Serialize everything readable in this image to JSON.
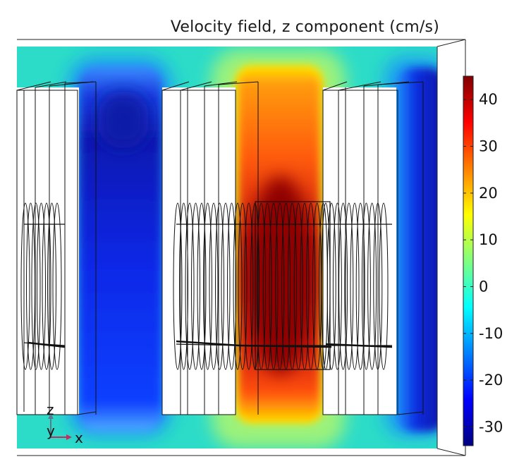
{
  "title": "Velocity field, z component (cm/s)",
  "colorbar": {
    "min": -34,
    "max": 45,
    "ticks": [
      {
        "value": 40,
        "label": "40"
      },
      {
        "value": 30,
        "label": "30"
      },
      {
        "value": 20,
        "label": "20"
      },
      {
        "value": 10,
        "label": "10"
      },
      {
        "value": 0,
        "label": "0"
      },
      {
        "value": -10,
        "label": "-10"
      },
      {
        "value": -20,
        "label": "-20"
      },
      {
        "value": -30,
        "label": "-30"
      }
    ],
    "colors": [
      "#00007f",
      "#0000ff",
      "#0080ff",
      "#00ffff",
      "#80ff80",
      "#ffff00",
      "#ff8000",
      "#ff0000",
      "#7f0000"
    ]
  },
  "axes": {
    "x_label": "x",
    "y_label": "y",
    "z_label": "z"
  }
}
